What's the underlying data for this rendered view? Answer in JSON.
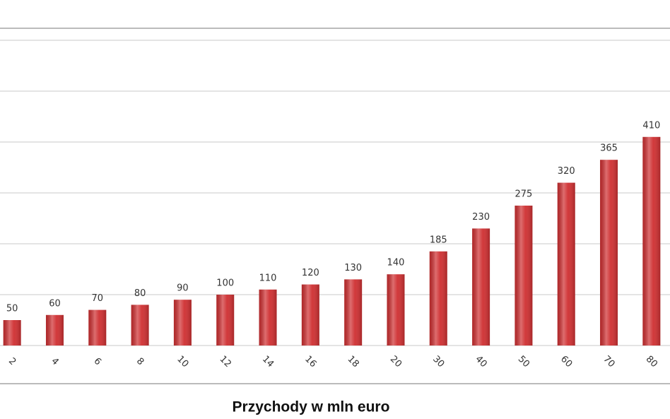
{
  "chart_data": {
    "type": "bar",
    "x_label": "Przychody w mln euro",
    "categories": [
      "2",
      "4",
      "6",
      "8",
      "10",
      "12",
      "14",
      "16",
      "18",
      "20",
      "30",
      "40",
      "50",
      "60",
      "70",
      "80"
    ],
    "values": [
      50,
      60,
      70,
      80,
      90,
      100,
      110,
      120,
      130,
      140,
      185,
      230,
      275,
      320,
      365,
      410
    ],
    "color": "#cf2f31",
    "ylim": [
      0,
      600
    ],
    "yticks": [
      0,
      100,
      200,
      300,
      400,
      500,
      600
    ],
    "grid": true
  }
}
